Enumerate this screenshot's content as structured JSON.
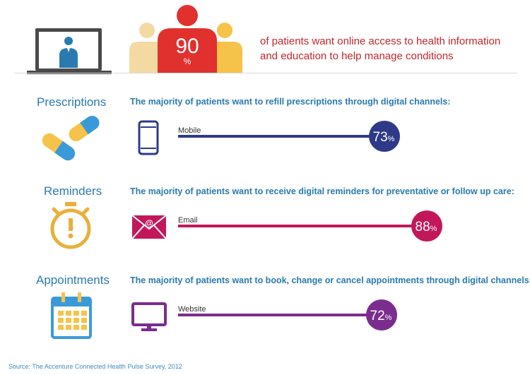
{
  "hero": {
    "percent": "90",
    "percent_sign": "%",
    "text_line1": "of patients want online access to health information",
    "text_line2": "and education to help manage conditions"
  },
  "sections": [
    {
      "label": "Prescriptions",
      "description": "The majority of patients want to refill prescriptions through digital channels:",
      "icon": "pills-icon",
      "channel_icon": "mobile-phone-icon",
      "color": "#2e3a87"
    },
    {
      "label": "Reminders",
      "description": "The majority of patients want to receive digital reminders for preventative or follow up care:",
      "icon": "stopwatch-icon",
      "channel_icon": "email-envelope-icon",
      "color": "#c2185b"
    },
    {
      "label": "Appointments",
      "description": "The majority of patients want to book, change or cancel appointments through digital channels:",
      "icon": "calendar-icon",
      "channel_icon": "monitor-icon",
      "color": "#7b2d8e"
    }
  ],
  "chart_data": {
    "type": "bar",
    "categories": [
      "Mobile",
      "Email",
      "Website"
    ],
    "values": [
      73,
      88,
      72
    ],
    "value_labels": [
      "73",
      "88",
      "72"
    ],
    "unit": "%",
    "colors": [
      "#2e3a87",
      "#c2185b",
      "#7b2d8e"
    ]
  },
  "source": "Source: The Accenture Connected Health Pulse Survey, 2012"
}
